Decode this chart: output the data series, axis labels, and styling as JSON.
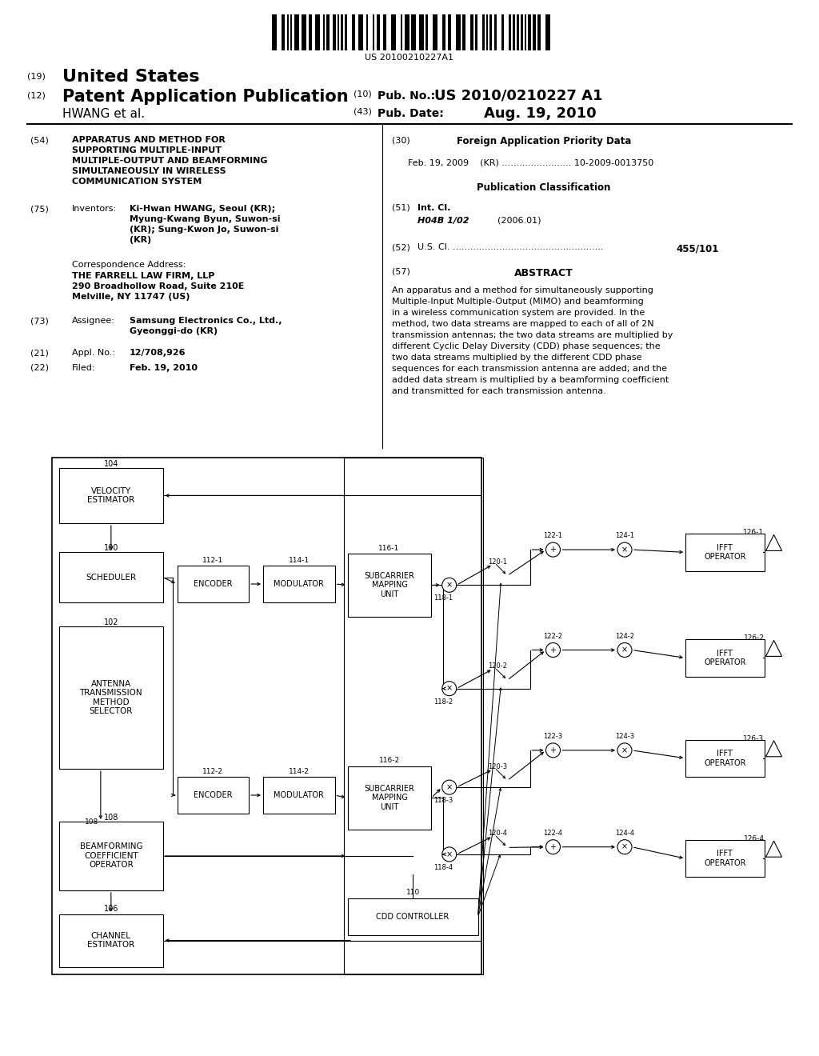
{
  "bg_color": "#ffffff",
  "barcode_text": "US 20100210227A1",
  "abstract_lines": [
    "An apparatus and a method for simultaneously supporting",
    "Multiple-Input Multiple-Output (MIMO) and beamforming",
    "in a wireless communication system are provided. In the",
    "method, two data streams are mapped to each of all of 2N",
    "transmission antennas; the two data streams are multiplied by",
    "different Cyclic Delay Diversity (CDD) phase sequences; the",
    "two data streams multiplied by the different CDD phase",
    "sequences for each transmission antenna are added; and the",
    "added data stream is multiplied by a beamforming coefficient",
    "and transmitted for each transmission antenna."
  ]
}
